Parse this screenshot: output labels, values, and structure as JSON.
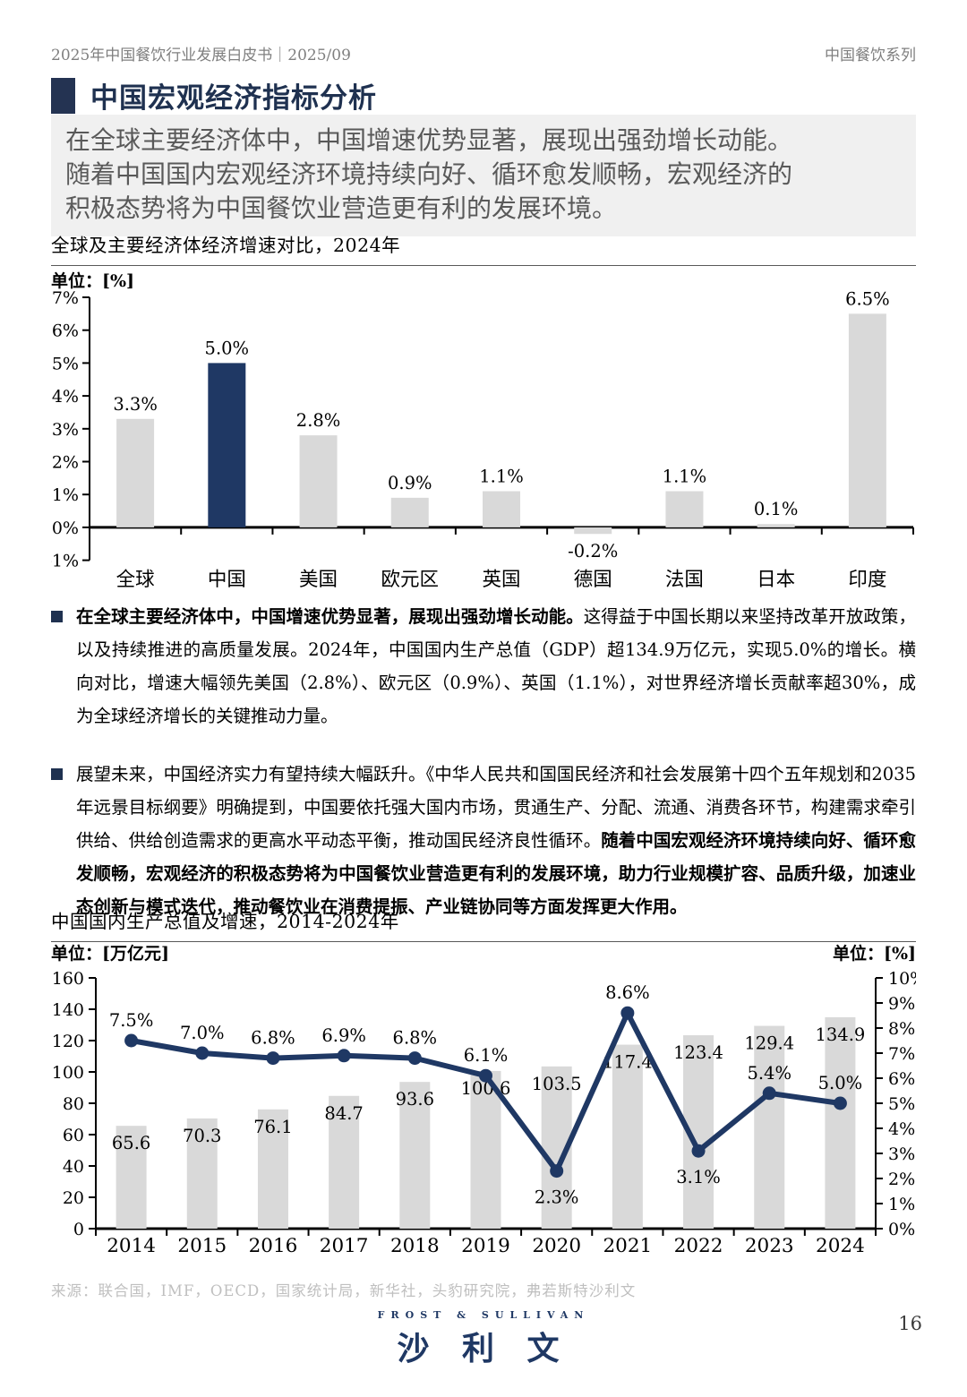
{
  "header": {
    "left": "2025年中国餐饮行业发展白皮书｜2025/09",
    "right": "中国餐饮系列"
  },
  "section": {
    "title": "中国宏观经济指标分析"
  },
  "highlight": {
    "lines": [
      "在全球主要经济体中，中国增速优势显著，展现出强劲增长动能。",
      "随着中国国内宏观经济环境持续向好、循环愈发顺畅，宏观经济的",
      "积极态势将为中国餐饮业营造更有利的发展环境。"
    ]
  },
  "bullets": [
    {
      "segments": [
        {
          "text": "在全球主要经济体中，中国增速优势显著，展现出强劲增长动能。",
          "bold": true
        },
        {
          "text": "这得益于中国长期以来坚持改革开放政策，以及持续推进的高质量发展。2024年，中国国内生产总值（GDP）超134.9万亿元，实现5.0%的增长。横向对比，增速大幅领先美国（2.8%）、欧元区（0.9%）、英国（1.1%），对世界经济增长贡献率超30%，成为全球经济增长的关键推动力量。",
          "bold": false
        }
      ]
    },
    {
      "segments": [
        {
          "text": "展望未来，中国经济实力有望持续大幅跃升。《中华人民共和国国民经济和社会发展第十四个五年规划和2035年远景目标纲要》明确提到，中国要依托强大国内市场，贯通生产、分配、流通、消费各环节，构建需求牵引供给、供给创造需求的更高水平动态平衡，推动国民经济良性循环。",
          "bold": false
        },
        {
          "text": "随着中国宏观经济环境持续向好、循环愈发顺畅，宏观经济的积极态势将为中国餐饮业营造更有利的发展环境，助力行业规模扩容、品质升级，加速业态创新与模式迭代，推动餐饮业在消费提振、产业链协同等方面发挥更大作用。",
          "bold": true
        }
      ]
    }
  ],
  "chart_data": [
    {
      "type": "bar",
      "title": "全球及主要经济体经济增速对比，2024年",
      "unit_left": "单位：[%]",
      "categories": [
        "全球",
        "中国",
        "美国",
        "欧元区",
        "英国",
        "德国",
        "法国",
        "日本",
        "印度"
      ],
      "values": [
        3.3,
        5.0,
        2.8,
        0.9,
        1.1,
        -0.2,
        1.1,
        0.1,
        6.5
      ],
      "labels": [
        "3.3%",
        "5.0%",
        "2.8%",
        "0.9%",
        "1.1%",
        "-0.2%",
        "1.1%",
        "0.1%",
        "6.5%"
      ],
      "highlight_index": 1,
      "ylim": [
        -1,
        7
      ],
      "ystep": 1,
      "grid": false,
      "legend": "none"
    },
    {
      "type": "bar+line",
      "title": "中国国内生产总值及增速，2014-2024年",
      "unit_left": "单位：[万亿元]",
      "unit_right": "单位：[%]",
      "categories": [
        "2014",
        "2015",
        "2016",
        "2017",
        "2018",
        "2019",
        "2020",
        "2021",
        "2022",
        "2023",
        "2024"
      ],
      "series": [
        {
          "name": "中国国内生产总值（万亿元）",
          "type": "bar",
          "axis": "left",
          "values": [
            65.6,
            70.3,
            76.1,
            84.7,
            93.6,
            100.6,
            103.5,
            117.4,
            123.4,
            129.4,
            134.9
          ],
          "labels": [
            "65.6",
            "70.3",
            "76.1",
            "84.7",
            "93.6",
            "100.6",
            "103.5",
            "117.4",
            "123.4",
            "129.4",
            "134.9"
          ]
        },
        {
          "name": "增速（%）",
          "type": "line",
          "axis": "right",
          "values": [
            7.5,
            7.0,
            6.8,
            6.9,
            6.8,
            6.1,
            2.3,
            8.6,
            3.1,
            5.4,
            5.0
          ],
          "labels": [
            "7.5%",
            "7.0%",
            "6.8%",
            "6.9%",
            "6.8%",
            "6.1%",
            "2.3%",
            "8.6%",
            "3.1%",
            "5.4%",
            "5.0%"
          ],
          "label_side": [
            "above",
            "above",
            "above",
            "above",
            "above",
            "above",
            "below",
            "above",
            "below",
            "above",
            "above"
          ]
        }
      ],
      "ylim_left": [
        0,
        160
      ],
      "ystep_left": 20,
      "ylim_right": [
        0,
        10
      ],
      "ystep_right": 1,
      "grid": false,
      "legend": "none"
    }
  ],
  "source": "来源：联合国，IMF，OECD，国家统计局，新华社，头豹研究院，弗若斯特沙利文",
  "footer": {
    "logo_english": "FROST & SULLIVAN",
    "logo_chinese": "沙 利 文",
    "page_number": "16"
  },
  "colors": {
    "navy": "#1f3864",
    "bar_gray": "#d9d9d9",
    "title_navy": "#1f3150",
    "square_navy": "#243352",
    "highlight_bg": "#f0f0f0",
    "highlight_text": "#595959",
    "header_gray": "#7f7f7f",
    "source_gray": "#bfbfbf",
    "axis_black": "#000000"
  }
}
